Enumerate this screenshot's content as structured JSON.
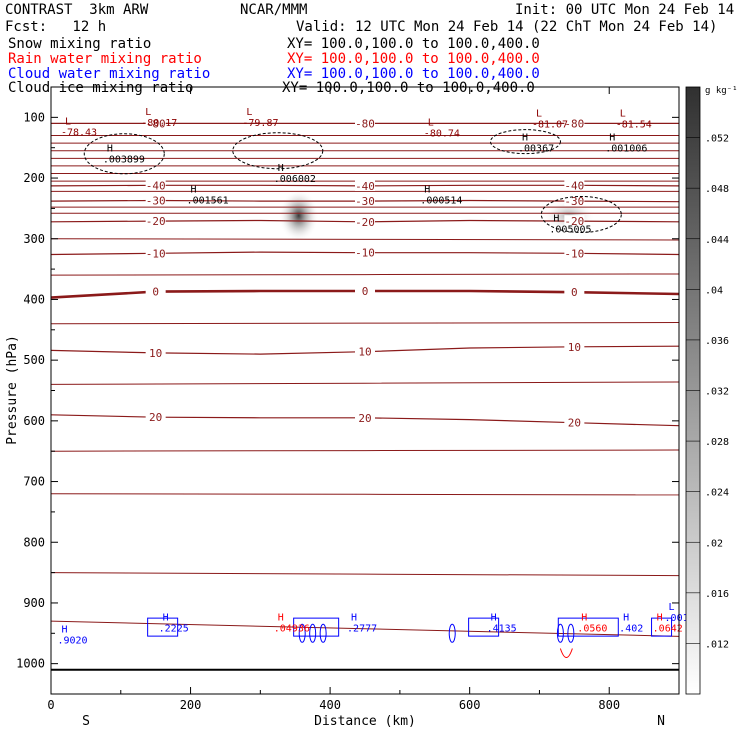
{
  "header": {
    "title": "CONTRAST  3km ARW",
    "center_title": "NCAR/MMM",
    "init": "Init: 00 UTC Mon 24 Feb 14",
    "fcst_label": "Fcst:   12 h",
    "valid": "Valid: 12 UTC Mon 24 Feb 14 (22 ChT Mon 24 Feb 14)",
    "fields": [
      {
        "name": "Snow mixing ratio",
        "xy": "XY= 100.0,100.0 to 100.0,400.0",
        "color": "#000000"
      },
      {
        "name": "Rain water mixing ratio",
        "xy": "XY= 100.0,100.0 to 100.0,400.0",
        "color": "#ff0000"
      },
      {
        "name": "Cloud water mixing ratio",
        "xy": "XY= 100.0,100.0 to 100.0,400.0",
        "color": "#0000ff"
      },
      {
        "name": "Cloud ice mixing ratio",
        "xy": "XY= 100.0,100.0 to 100.0,400.0",
        "color": "#000000"
      }
    ]
  },
  "chart_data": {
    "type": "cross-section",
    "xlabel": "Distance (km)",
    "ylabel": "Pressure (hPa)",
    "xlim": [
      0,
      900
    ],
    "ylim": [
      1050,
      50
    ],
    "x_ticks": [
      0,
      200,
      400,
      600,
      800
    ],
    "y_ticks": [
      100,
      200,
      300,
      400,
      500,
      600,
      700,
      800,
      900,
      1000
    ],
    "x_end_labels": {
      "left": "S",
      "right": "N"
    },
    "surface_pressure": 1010,
    "colorbar": {
      "unit": "g kg⁻¹",
      "ticks": [
        ".052",
        ".048",
        ".044",
        ".04",
        ".036",
        ".032",
        ".028",
        ".024",
        ".02",
        ".016",
        ".012"
      ]
    },
    "temperature_contours": [
      {
        "label": "-80",
        "p": [
          110,
          110,
          110,
          110,
          110,
          110,
          110
        ]
      },
      {
        "label": "-40",
        "p": [
          213,
          212,
          212,
          213,
          212,
          212,
          213
        ]
      },
      {
        "label": "-30",
        "p": [
          238,
          237,
          238,
          238,
          237,
          238,
          239
        ]
      },
      {
        "label": "-20",
        "p": [
          272,
          271,
          270,
          272,
          270,
          271,
          272
        ]
      },
      {
        "label": "-10",
        "p": [
          326,
          324,
          322,
          323,
          323,
          324,
          326
        ]
      },
      {
        "label": "0",
        "p": [
          397,
          387,
          386,
          386,
          386,
          388,
          391
        ]
      },
      {
        "label": "10",
        "p": [
          484,
          488,
          490,
          486,
          480,
          478,
          477
        ]
      },
      {
        "label": "20",
        "p": [
          590,
          594,
          595,
          595,
          598,
          603,
          608
        ]
      }
    ],
    "extrema_labels": [
      {
        "type": "L",
        "value": "-78.43",
        "x": 20,
        "p": 128,
        "color": "#8b0000"
      },
      {
        "type": "L",
        "value": "-80.17",
        "x": 135,
        "p": 113,
        "color": "#8b0000"
      },
      {
        "type": "L",
        "value": "-79.87",
        "x": 280,
        "p": 113,
        "color": "#8b0000"
      },
      {
        "type": "L",
        "value": "-80.74",
        "x": 540,
        "p": 130,
        "color": "#8b0000"
      },
      {
        "type": "L",
        "value": "-81.07",
        "x": 695,
        "p": 115,
        "color": "#8b0000"
      },
      {
        "type": "L",
        "value": "-81.54",
        "x": 815,
        "p": 115,
        "color": "#8b0000"
      },
      {
        "type": "H",
        "value": ".003899",
        "x": 80,
        "p": 173,
        "color": "#000000"
      },
      {
        "type": "H",
        "value": ".006002",
        "x": 325,
        "p": 205,
        "color": "#000000"
      },
      {
        "type": "H",
        "value": ".001561",
        "x": 200,
        "p": 240,
        "color": "#000000"
      },
      {
        "type": "H",
        "value": ".000514",
        "x": 535,
        "p": 240,
        "color": "#000000"
      },
      {
        "type": "H",
        "value": ".005005",
        "x": 720,
        "p": 288,
        "color": "#000000"
      },
      {
        "type": "H",
        "value": ".00367",
        "x": 675,
        "p": 155,
        "color": "#000000"
      },
      {
        "type": "H",
        "value": ".001006",
        "x": 800,
        "p": 155,
        "color": "#000000"
      },
      {
        "type": "H",
        "value": ".9020",
        "x": 15,
        "p": 965,
        "color": "#0000ff"
      },
      {
        "type": "H",
        "value": ".2225",
        "x": 160,
        "p": 945,
        "color": "#0000ff"
      },
      {
        "type": "H",
        "value": ".04936",
        "x": 325,
        "p": 945,
        "color": "#ff0000"
      },
      {
        "type": "H",
        "value": ".2777",
        "x": 430,
        "p": 945,
        "color": "#0000ff"
      },
      {
        "type": "H",
        "value": ".4135",
        "x": 630,
        "p": 945,
        "color": "#0000ff"
      },
      {
        "type": "H",
        "value": ".0560",
        "x": 760,
        "p": 945,
        "color": "#ff0000"
      },
      {
        "type": "H",
        "value": ".402",
        "x": 820,
        "p": 945,
        "color": "#0000ff"
      },
      {
        "type": "H",
        "value": ".0642",
        "x": 868,
        "p": 945,
        "color": "#ff0000"
      },
      {
        "type": "L",
        "value": ".001",
        "x": 885,
        "p": 928,
        "color": "#0000ff"
      }
    ]
  }
}
